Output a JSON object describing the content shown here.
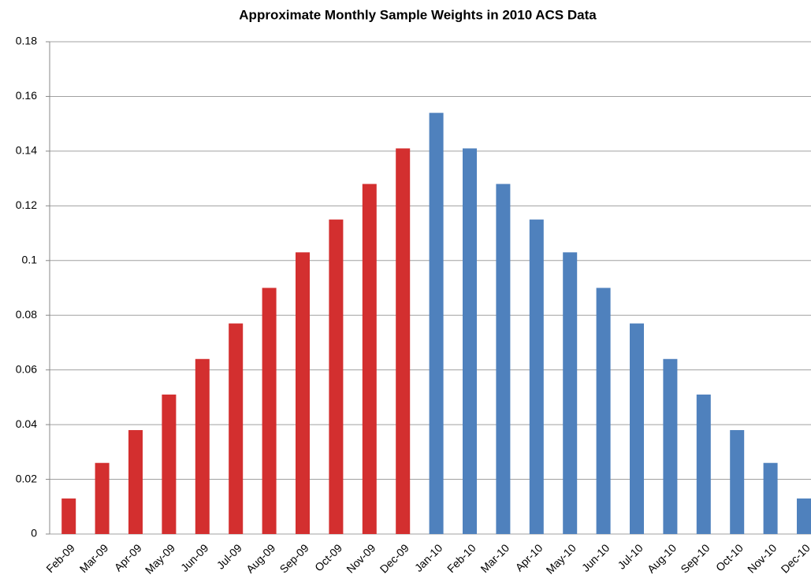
{
  "chart_data": {
    "type": "bar",
    "title": "Approximate Monthly Sample Weights in 2010 ACS Data",
    "categories": [
      "Feb-09",
      "Mar-09",
      "Apr-09",
      "May-09",
      "Jun-09",
      "Jul-09",
      "Aug-09",
      "Sep-09",
      "Oct-09",
      "Nov-09",
      "Dec-09",
      "Jan-10",
      "Feb-10",
      "Mar-10",
      "Apr-10",
      "May-10",
      "Jun-10",
      "Jul-10",
      "Aug-10",
      "Sep-10",
      "Oct-10",
      "Nov-10",
      "Dec-10"
    ],
    "values": [
      0.013,
      0.026,
      0.038,
      0.051,
      0.064,
      0.077,
      0.09,
      0.103,
      0.115,
      0.128,
      0.141,
      0.154,
      0.141,
      0.128,
      0.115,
      0.103,
      0.09,
      0.077,
      0.064,
      0.051,
      0.038,
      0.026,
      0.013
    ],
    "colors": [
      "#d32f2f",
      "#d32f2f",
      "#d32f2f",
      "#d32f2f",
      "#d32f2f",
      "#d32f2f",
      "#d32f2f",
      "#d32f2f",
      "#d32f2f",
      "#d32f2f",
      "#d32f2f",
      "#4f81bd",
      "#4f81bd",
      "#4f81bd",
      "#4f81bd",
      "#4f81bd",
      "#4f81bd",
      "#4f81bd",
      "#4f81bd",
      "#4f81bd",
      "#4f81bd",
      "#4f81bd",
      "#4f81bd"
    ],
    "ylim": [
      0,
      0.18
    ],
    "yticks": [
      0,
      0.02,
      0.04,
      0.06,
      0.08,
      0.1,
      0.12,
      0.14,
      0.16,
      0.18
    ],
    "grid": true
  }
}
